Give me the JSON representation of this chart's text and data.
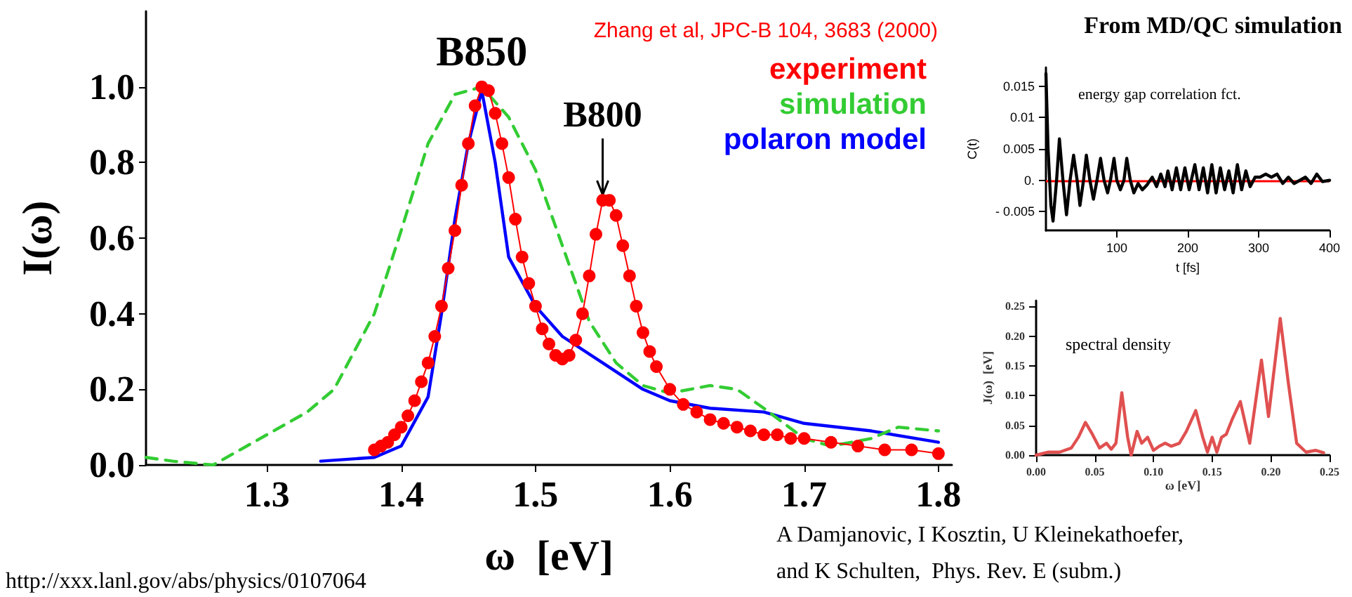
{
  "chart_data": [
    {
      "type": "line",
      "xlabel": "ω  [eV]",
      "ylabel": "I(ω)",
      "xlim": [
        1.21,
        1.81
      ],
      "ylim": [
        0,
        1.2
      ],
      "xticks": [
        1.3,
        1.4,
        1.5,
        1.6,
        1.7,
        1.8
      ],
      "yticks": [
        {
          "value": 0,
          "label": "0.0"
        },
        0.2,
        0.4,
        0.6,
        0.8,
        {
          "value": 1,
          "label": "1.0"
        }
      ],
      "legend": "top right",
      "series": [
        {
          "name": "experiment",
          "color": "#ff0000",
          "marker": "circle",
          "x": [
            1.38,
            1.385,
            1.39,
            1.395,
            1.4,
            1.405,
            1.41,
            1.415,
            1.42,
            1.425,
            1.43,
            1.435,
            1.44,
            1.445,
            1.45,
            1.455,
            1.46,
            1.465,
            1.47,
            1.475,
            1.48,
            1.485,
            1.49,
            1.495,
            1.5,
            1.505,
            1.51,
            1.515,
            1.52,
            1.525,
            1.53,
            1.535,
            1.54,
            1.545,
            1.55,
            1.555,
            1.56,
            1.565,
            1.57,
            1.575,
            1.58,
            1.585,
            1.59,
            1.6,
            1.61,
            1.62,
            1.63,
            1.64,
            1.65,
            1.66,
            1.67,
            1.68,
            1.69,
            1.7,
            1.72,
            1.74,
            1.76,
            1.78,
            1.8
          ],
          "values": [
            0.04,
            0.05,
            0.06,
            0.08,
            0.1,
            0.13,
            0.17,
            0.22,
            0.27,
            0.34,
            0.42,
            0.52,
            0.62,
            0.74,
            0.85,
            0.95,
            1.0,
            0.99,
            0.93,
            0.85,
            0.76,
            0.65,
            0.55,
            0.48,
            0.42,
            0.36,
            0.32,
            0.29,
            0.28,
            0.29,
            0.33,
            0.4,
            0.5,
            0.61,
            0.7,
            0.7,
            0.66,
            0.58,
            0.5,
            0.42,
            0.35,
            0.3,
            0.26,
            0.2,
            0.16,
            0.14,
            0.12,
            0.11,
            0.1,
            0.09,
            0.08,
            0.08,
            0.07,
            0.07,
            0.06,
            0.05,
            0.04,
            0.04,
            0.03
          ]
        },
        {
          "name": "simulation",
          "color": "#33cc33",
          "marker": "none",
          "line_style": "dashed",
          "x": [
            1.21,
            1.23,
            1.26,
            1.29,
            1.33,
            1.35,
            1.38,
            1.4,
            1.42,
            1.44,
            1.46,
            1.48,
            1.5,
            1.52,
            1.54,
            1.56,
            1.58,
            1.6,
            1.63,
            1.65,
            1.67,
            1.7,
            1.72,
            1.75,
            1.77,
            1.8
          ],
          "values": [
            0.02,
            0.01,
            0,
            0.06,
            0.14,
            0.2,
            0.4,
            0.62,
            0.85,
            0.98,
            1.0,
            0.92,
            0.78,
            0.58,
            0.38,
            0.27,
            0.21,
            0.19,
            0.21,
            0.2,
            0.15,
            0.07,
            0.05,
            0.07,
            0.1,
            0.09
          ]
        },
        {
          "name": "polaron model",
          "color": "#0000ff",
          "marker": "none",
          "x": [
            1.34,
            1.38,
            1.4,
            1.42,
            1.43,
            1.44,
            1.45,
            1.46,
            1.47,
            1.48,
            1.5,
            1.52,
            1.55,
            1.58,
            1.6,
            1.63,
            1.67,
            1.7,
            1.75,
            1.8
          ],
          "values": [
            0.01,
            0.02,
            0.05,
            0.18,
            0.4,
            0.65,
            0.85,
            0.99,
            0.8,
            0.55,
            0.42,
            0.34,
            0.27,
            0.2,
            0.17,
            0.15,
            0.14,
            0.11,
            0.09,
            0.06
          ]
        }
      ],
      "annotations": [
        {
          "text": "B850",
          "x": 1.46,
          "y": 1.0
        },
        {
          "text": "B800",
          "x": 1.55,
          "y": 0.7
        },
        "Zhang et al, JPC-B 104, 3683 (2000)",
        "http://xxx.lanl.gov/abs/physics/0107064"
      ]
    },
    {
      "type": "line",
      "title": "energy gap correlation fct.",
      "xlabel": "t [fs]",
      "ylabel": "C(t)",
      "xlim": [
        0,
        400
      ],
      "ylim": [
        -0.008,
        0.018
      ],
      "xticks": [
        100,
        200,
        300,
        400
      ],
      "yticks": [
        {
          "value": -0.005,
          "label": "- 0.005"
        },
        {
          "value": 0,
          "label": "0."
        },
        0.005,
        0.01,
        0.015
      ],
      "ref_lines": [
        {
          "axis": "y",
          "value": 0,
          "color": "#ff0000"
        }
      ],
      "series": [
        {
          "color": "#000000",
          "x": [
            0,
            3,
            7,
            10,
            15,
            19,
            24,
            29,
            34,
            39,
            44,
            48,
            53,
            57,
            62,
            67,
            72,
            77,
            82,
            87,
            91,
            96,
            100,
            105,
            110,
            114,
            119,
            124,
            130,
            136,
            142,
            150,
            156,
            162,
            168,
            172,
            178,
            184,
            190,
            196,
            202,
            210,
            216,
            222,
            228,
            234,
            240,
            246,
            252,
            258,
            264,
            270,
            276,
            282,
            288,
            295,
            302,
            310,
            318,
            326,
            334,
            342,
            350,
            358,
            366,
            374,
            382,
            390,
            400
          ],
          "values": [
            0.017,
            0.005,
            -0.004,
            -0.0065,
            0,
            0.0066,
            0,
            -0.0055,
            0,
            0.004,
            0,
            -0.004,
            0,
            0.004,
            0,
            -0.003,
            0,
            0.0035,
            0,
            -0.002,
            0,
            0.0035,
            0,
            -0.0015,
            0,
            0.0035,
            0,
            -0.002,
            -0.0005,
            -0.0015,
            -0.0008,
            0.0005,
            -0.001,
            0.001,
            -0.001,
            0.0015,
            -0.0015,
            0.002,
            -0.0015,
            0.002,
            -0.0015,
            0.0025,
            -0.0015,
            0.002,
            -0.002,
            0.0025,
            -0.002,
            0.002,
            -0.0015,
            0.0015,
            -0.002,
            0.0025,
            -0.0015,
            0.0015,
            -0.001,
            0.0005,
            0.0005,
            0.001,
            0.0005,
            0.001,
            -0.0005,
            0.0005,
            -0.0005,
            0,
            0.0005,
            -0.0005,
            0.001,
            -0.0002,
            0
          ]
        }
      ],
      "annotations": [
        "From MD/QC simulation"
      ]
    },
    {
      "type": "line",
      "title": "spectral density",
      "xlabel": "ω [eV]",
      "ylabel": "J(ω)  [eV]",
      "xlim": [
        0,
        0.25
      ],
      "ylim": [
        0,
        0.26
      ],
      "xticks": [
        {
          "value": 0,
          "label": "0.00"
        },
        0.05,
        {
          "value": 0.1,
          "label": "0.10"
        },
        0.15,
        {
          "value": 0.2,
          "label": "0.20"
        },
        0.25
      ],
      "yticks": [
        {
          "value": 0,
          "label": "0.00"
        },
        0.05,
        {
          "value": 0.1,
          "label": "0.10"
        },
        0.15,
        {
          "value": 0.2,
          "label": "0.20"
        },
        0.25
      ],
      "series": [
        {
          "color": "#e05050",
          "x": [
            0,
            0.01,
            0.02,
            0.03,
            0.036,
            0.042,
            0.048,
            0.054,
            0.06,
            0.064,
            0.068,
            0.073,
            0.078,
            0.081,
            0.086,
            0.09,
            0.095,
            0.1,
            0.105,
            0.11,
            0.115,
            0.122,
            0.128,
            0.136,
            0.142,
            0.146,
            0.15,
            0.154,
            0.158,
            0.162,
            0.167,
            0.174,
            0.182,
            0.192,
            0.198,
            0.208,
            0.215,
            0.222,
            0.23,
            0.238,
            0.245
          ],
          "values": [
            0,
            0.005,
            0.005,
            0.012,
            0.03,
            0.055,
            0.035,
            0.012,
            0.02,
            0.01,
            0.02,
            0.105,
            0.03,
            0,
            0.04,
            0.02,
            0.03,
            0.008,
            0.015,
            0.02,
            0.015,
            0.02,
            0.04,
            0.075,
            0.03,
            0.005,
            0.03,
            0.005,
            0.03,
            0.035,
            0.06,
            0.09,
            0.02,
            0.16,
            0.065,
            0.23,
            0.12,
            0.02,
            0.005,
            0.008,
            0.004
          ]
        }
      ],
      "annotations": [
        "A Damjanovic, I Kosztin, U Kleinekathoefer,",
        "and K Schulten,  Phys. Rev. E (subm.)"
      ]
    }
  ]
}
